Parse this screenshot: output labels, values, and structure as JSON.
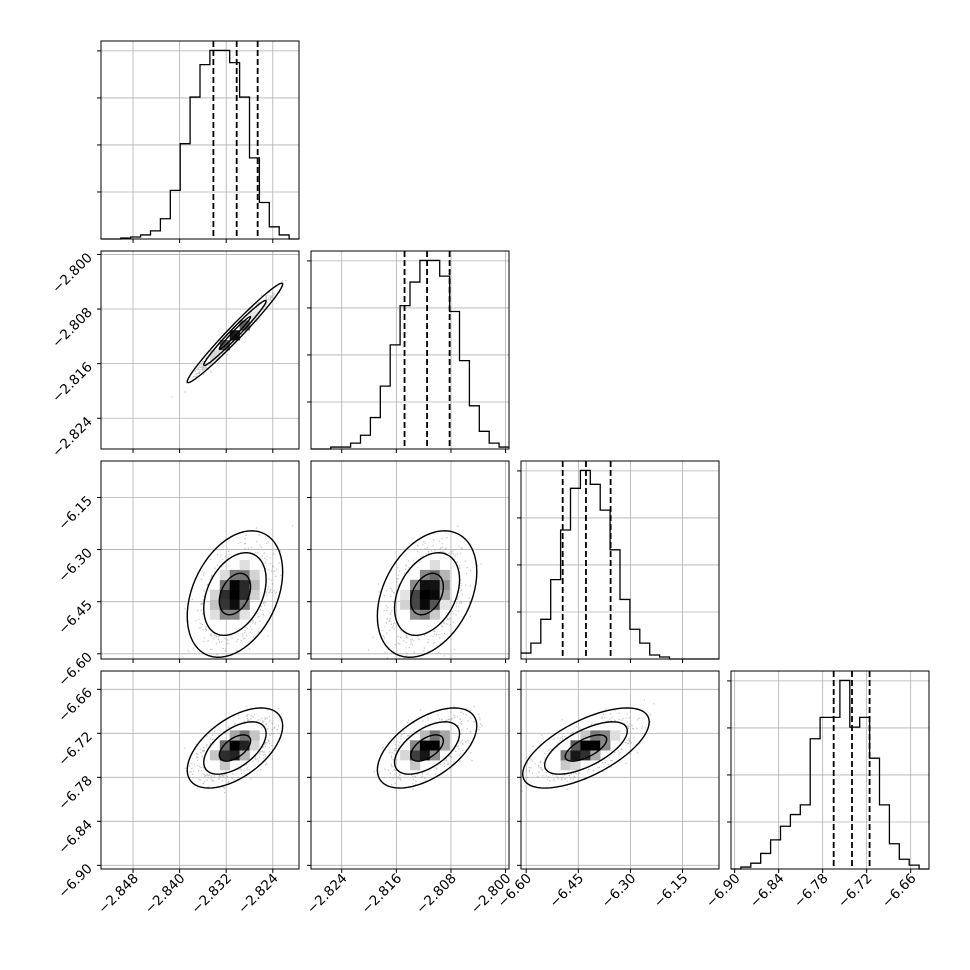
{
  "chart_data": {
    "type": "corner",
    "title": "",
    "grid": true,
    "colors": {
      "lines": "#000000",
      "grid": "#b0b0b0",
      "scatter": "#7a7a7a",
      "background": "#ffffff"
    },
    "parameters": [
      {
        "range": [
          -2.8535,
          -2.8195
        ],
        "ticks": [
          -2.848,
          -2.84,
          -2.832,
          -2.824
        ],
        "tick_labels": [
          "−2.848",
          "−2.840",
          "−2.832",
          "−2.824"
        ],
        "quantiles": [
          -2.8342,
          -2.8302,
          -2.8266
        ],
        "histogram": {
          "bin_edges": [
            -2.8535,
            -2.8518,
            -2.8501,
            -2.8484,
            -2.8467,
            -2.845,
            -2.8433,
            -2.8416,
            -2.8399,
            -2.8382,
            -2.8365,
            -2.8348,
            -2.8331,
            -2.8314,
            -2.8297,
            -2.828,
            -2.8263,
            -2.8246,
            -2.8229,
            -2.8212,
            -2.8195
          ],
          "counts": [
            0,
            0,
            0.5,
            1,
            2,
            4,
            10,
            24,
            47,
            70,
            86,
            93,
            93,
            87,
            70,
            40,
            18,
            6,
            2,
            0
          ]
        },
        "peak": {
          "center": -2.8305,
          "sd": 0.0027
        }
      },
      {
        "range": [
          -2.8285,
          -2.7995
        ],
        "ticks": [
          -2.824,
          -2.816,
          -2.808,
          -2.8
        ],
        "tick_labels": [
          "−2.824",
          "−2.816",
          "−2.808",
          "−2.800"
        ],
        "quantiles": [
          -2.8148,
          -2.8115,
          -2.8082
        ],
        "histogram": {
          "bin_edges": [
            -2.8285,
            -2.82705,
            -2.8256,
            -2.82415,
            -2.8227,
            -2.82125,
            -2.8198,
            -2.81835,
            -2.8169,
            -2.81545,
            -2.814,
            -2.81255,
            -2.8111,
            -2.80965,
            -2.8082,
            -2.80675,
            -2.8053,
            -2.80385,
            -2.8024,
            -2.80095,
            -2.7995
          ],
          "counts": [
            0,
            0,
            1,
            1,
            3,
            7,
            16,
            32,
            53,
            73,
            85,
            96,
            96,
            88,
            70,
            45,
            22,
            9,
            3,
            1
          ]
        },
        "peak": {
          "center": -2.8115,
          "sd": 0.0024
        }
      },
      {
        "range": [
          -6.615,
          -6.045
        ],
        "ticks": [
          -6.6,
          -6.45,
          -6.3,
          -6.15
        ],
        "tick_labels": [
          "−6.60",
          "−6.45",
          "−6.30",
          "−6.15"
        ],
        "quantiles": [
          -6.495,
          -6.428,
          -6.357
        ],
        "histogram": {
          "bin_edges": [
            -6.615,
            -6.5865,
            -6.558,
            -6.5295,
            -6.501,
            -6.4725,
            -6.444,
            -6.4155,
            -6.387,
            -6.3585,
            -6.33,
            -6.3015,
            -6.273,
            -6.2445,
            -6.216,
            -6.1875,
            -6.159,
            -6.1305,
            -6.102,
            -6.0735,
            -6.045
          ],
          "counts": [
            3,
            8,
            20,
            40,
            65,
            86,
            95,
            88,
            75,
            55,
            30,
            15,
            8,
            2,
            1,
            0,
            0,
            0,
            0,
            0
          ]
        },
        "peak": {
          "center": -6.428,
          "sd": 0.06
        }
      },
      {
        "range": [
          -6.905,
          -6.635
        ],
        "ticks": [
          -6.9,
          -6.84,
          -6.78,
          -6.72,
          -6.66
        ],
        "tick_labels": [
          "−6.90",
          "−6.84",
          "−6.78",
          "−6.72",
          "−6.66"
        ],
        "quantiles": [
          -6.765,
          -6.74,
          -6.716
        ],
        "histogram": {
          "bin_edges": [
            -6.905,
            -6.8915,
            -6.878,
            -6.8645,
            -6.851,
            -6.8375,
            -6.824,
            -6.8105,
            -6.797,
            -6.7835,
            -6.77,
            -6.7565,
            -6.743,
            -6.7295,
            -6.716,
            -6.7025,
            -6.689,
            -6.6755,
            -6.662,
            -6.6485,
            -6.635
          ],
          "counts": [
            0,
            1,
            3,
            8,
            15,
            22,
            28,
            33,
            67,
            78,
            78,
            97,
            73,
            78,
            57,
            33,
            13,
            5,
            2,
            0
          ]
        },
        "peak": {
          "center": -6.74,
          "sd": 0.018
        }
      }
    ],
    "pairs": [
      {
        "row": 1,
        "col": 0,
        "correlation": 0.98
      },
      {
        "row": 2,
        "col": 0,
        "correlation": 0.35
      },
      {
        "row": 2,
        "col": 1,
        "correlation": 0.35
      },
      {
        "row": 3,
        "col": 0,
        "correlation": 0.55
      },
      {
        "row": 3,
        "col": 1,
        "correlation": 0.55
      },
      {
        "row": 3,
        "col": 2,
        "correlation": 0.65
      }
    ],
    "contour_levels": [
      0.39,
      0.86,
      0.99
    ]
  }
}
